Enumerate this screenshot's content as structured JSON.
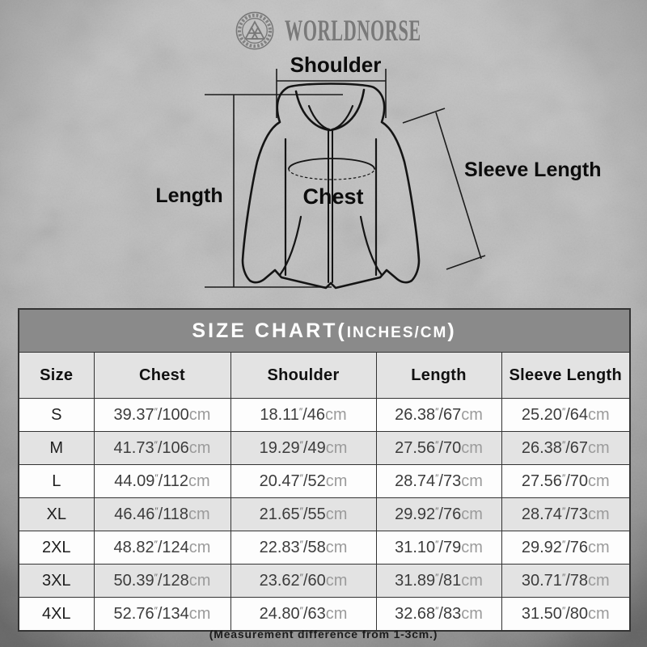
{
  "brand": {
    "name": "WORLDNORSE",
    "emblem": "valknut-icon"
  },
  "diagram": {
    "shoulder_label": "Shoulder",
    "length_label": "Length",
    "chest_label": "Chest",
    "sleeve_length_label": "Sleeve Length"
  },
  "size_chart": {
    "title_main": "SIZE CHART(",
    "title_unit": "INCHES/CM",
    "title_close": ")",
    "columns": [
      "Size",
      "Chest",
      "Shoulder",
      "Length",
      "Sleeve Length"
    ],
    "inch_mark": "″",
    "separator": "/",
    "unit_cm": "cm",
    "rows": [
      {
        "size": "S",
        "chest": {
          "in": "39.37",
          "cm": "100"
        },
        "shoulder": {
          "in": "18.11",
          "cm": "46"
        },
        "length": {
          "in": "26.38",
          "cm": "67"
        },
        "sleeve_length": {
          "in": "25.20",
          "cm": "64"
        }
      },
      {
        "size": "M",
        "chest": {
          "in": "41.73",
          "cm": "106"
        },
        "shoulder": {
          "in": "19.29",
          "cm": "49"
        },
        "length": {
          "in": "27.56",
          "cm": "70"
        },
        "sleeve_length": {
          "in": "26.38",
          "cm": "67"
        }
      },
      {
        "size": "L",
        "chest": {
          "in": "44.09",
          "cm": "112"
        },
        "shoulder": {
          "in": "20.47",
          "cm": "52"
        },
        "length": {
          "in": "28.74",
          "cm": "73"
        },
        "sleeve_length": {
          "in": "27.56",
          "cm": "70"
        }
      },
      {
        "size": "XL",
        "chest": {
          "in": "46.46",
          "cm": "118"
        },
        "shoulder": {
          "in": "21.65",
          "cm": "55"
        },
        "length": {
          "in": "29.92",
          "cm": "76"
        },
        "sleeve_length": {
          "in": "28.74",
          "cm": "73"
        }
      },
      {
        "size": "2XL",
        "chest": {
          "in": "48.82",
          "cm": "124"
        },
        "shoulder": {
          "in": "22.83",
          "cm": "58"
        },
        "length": {
          "in": "31.10",
          "cm": "79"
        },
        "sleeve_length": {
          "in": "29.92",
          "cm": "76"
        }
      },
      {
        "size": "3XL",
        "chest": {
          "in": "50.39",
          "cm": "128"
        },
        "shoulder": {
          "in": "23.62",
          "cm": "60"
        },
        "length": {
          "in": "31.89",
          "cm": "81"
        },
        "sleeve_length": {
          "in": "30.71",
          "cm": "78"
        }
      },
      {
        "size": "4XL",
        "chest": {
          "in": "52.76",
          "cm": "134"
        },
        "shoulder": {
          "in": "24.80",
          "cm": "63"
        },
        "length": {
          "in": "32.68",
          "cm": "83"
        },
        "sleeve_length": {
          "in": "31.50",
          "cm": "80"
        }
      }
    ],
    "footnote": "(Measurement difference from 1-3cm.)"
  },
  "colors": {
    "title_band_bg": "#8a8a8a",
    "title_text": "#ffffff",
    "header_row_bg": "#e3e3e3",
    "white_row_bg": "#fdfdfd",
    "table_border": "#333333",
    "cm_text": "#9b9b9b",
    "line_art": "#141414",
    "logo_gray": "#737373"
  }
}
